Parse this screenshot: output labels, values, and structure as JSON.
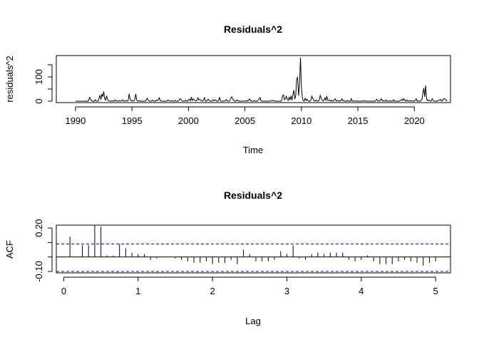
{
  "chart_data": [
    {
      "type": "line",
      "title": "Residuals^2",
      "xlabel": "Time",
      "ylabel": "residuals^2",
      "xlim": [
        1988.3,
        2023.2
      ],
      "ylim": [
        -6,
        188
      ],
      "x_ticks": [
        1990,
        1995,
        2000,
        2005,
        2010,
        2015,
        2020
      ],
      "y_ticks": [
        0,
        50,
        100,
        150
      ],
      "y_tick_labels": [
        "0",
        "",
        "100",
        ""
      ],
      "grid": false,
      "series": [
        {
          "x_start": 1990.0,
          "x_step": 0.083333,
          "values": [
            0,
            0,
            0,
            0,
            0,
            0,
            0,
            0,
            0,
            0,
            0,
            0,
            0,
            0,
            3,
            16,
            8,
            2,
            0,
            0,
            0,
            5,
            1,
            0,
            0,
            12,
            25,
            6,
            30,
            18,
            40,
            10,
            4,
            22,
            8,
            2,
            1,
            0,
            0,
            2,
            0,
            0,
            5,
            2,
            0,
            0,
            2,
            1,
            0,
            2,
            6,
            0,
            0,
            3,
            1,
            0,
            5,
            30,
            8,
            2,
            3,
            0,
            2,
            6,
            30,
            5,
            0,
            1,
            2,
            0,
            0,
            0,
            0,
            0,
            0,
            3,
            12,
            6,
            2,
            0,
            0,
            1,
            4,
            0,
            0,
            0,
            4,
            2,
            6,
            14,
            2,
            0,
            1,
            0,
            0,
            0,
            0,
            0,
            5,
            3,
            1,
            0,
            0,
            2,
            0,
            0,
            3,
            0,
            0,
            0,
            3,
            10,
            8,
            2,
            0,
            0,
            1,
            4,
            0,
            0,
            5,
            8,
            2,
            15,
            3,
            10,
            6,
            2,
            0,
            3,
            14,
            5,
            8,
            3,
            2,
            0,
            5,
            14,
            0,
            0,
            2,
            8,
            3,
            0,
            0,
            0,
            6,
            2,
            5,
            4,
            0,
            0,
            3,
            15,
            2,
            0,
            0,
            0,
            0,
            1,
            6,
            2,
            0,
            0,
            2,
            12,
            18,
            8,
            4,
            0,
            0,
            2,
            5,
            1,
            0,
            0,
            0,
            0,
            1,
            0,
            0,
            0,
            3,
            0,
            4,
            9,
            2,
            0,
            0,
            0,
            2,
            0,
            0,
            0,
            4,
            7,
            15,
            2,
            1,
            0,
            0,
            0,
            0,
            0,
            0,
            0,
            0,
            0,
            2,
            2,
            3,
            0,
            1,
            0,
            0,
            0,
            0,
            0,
            0,
            2,
            22,
            26,
            6,
            10,
            20,
            8,
            3,
            16,
            6,
            22,
            4,
            28,
            45,
            8,
            25,
            92,
            98,
            22,
            70,
            180,
            60,
            15,
            2,
            0,
            12,
            3,
            8,
            2,
            0,
            0,
            3,
            20,
            12,
            4,
            0,
            3,
            4,
            0,
            0,
            6,
            24,
            12,
            5,
            0,
            3,
            14,
            4,
            20,
            3,
            3,
            5,
            0,
            3,
            0,
            0,
            6,
            10,
            0,
            2,
            0,
            2,
            0,
            1,
            10,
            2,
            2,
            0,
            0,
            0,
            3,
            0,
            0,
            0,
            10,
            0,
            1,
            0,
            0,
            2,
            0,
            0,
            0,
            0,
            0,
            0,
            0,
            1,
            3,
            0,
            0,
            0,
            0,
            0,
            0,
            0,
            0,
            0,
            0,
            0,
            2,
            8,
            2,
            0,
            0,
            5,
            10,
            0,
            2,
            0,
            0,
            5,
            0,
            0,
            0,
            2,
            0,
            0,
            0,
            6,
            0,
            0,
            0,
            0,
            0,
            0,
            3,
            3,
            8,
            3,
            10,
            2,
            0,
            5,
            0,
            0,
            3,
            0,
            0,
            2,
            0,
            0,
            3,
            10,
            0,
            2,
            0,
            0,
            3,
            5,
            30,
            54,
            18,
            65,
            10,
            2,
            5,
            3,
            0,
            2,
            10,
            3,
            0,
            0,
            0,
            0,
            2,
            4,
            5,
            7,
            0,
            3,
            10,
            10,
            8,
            3,
            1
          ]
        }
      ]
    },
    {
      "type": "bar",
      "title": "Residuals^2",
      "xlabel": "Lag",
      "ylabel": "ACF",
      "xlim": [
        -0.1,
        5.2
      ],
      "ylim": [
        -0.11,
        0.22
      ],
      "x_ticks": [
        0,
        1,
        2,
        3,
        4,
        5
      ],
      "y_ticks": [
        -0.1,
        0.0,
        0.1,
        0.2
      ],
      "y_tick_labels": [
        "-0.10",
        "",
        "",
        "0.20"
      ],
      "lag_step": 0.083333,
      "values": [
        0.14,
        0.0,
        0.08,
        0.08,
        0.22,
        0.21,
        0.01,
        0.01,
        0.09,
        0.06,
        0.03,
        0.02,
        0.02,
        -0.02,
        -0.01,
        0.0,
        0.0,
        -0.01,
        -0.02,
        -0.03,
        -0.04,
        -0.04,
        -0.03,
        -0.05,
        -0.04,
        -0.04,
        -0.02,
        -0.05,
        0.05,
        0.02,
        -0.03,
        -0.03,
        -0.03,
        -0.02,
        0.04,
        0.02,
        0.08,
        -0.01,
        -0.02,
        0.02,
        0.03,
        0.02,
        0.03,
        0.03,
        0.03,
        -0.02,
        -0.03,
        -0.02,
        0.01,
        -0.03,
        -0.05,
        -0.05,
        -0.05,
        -0.03,
        -0.02,
        -0.03,
        -0.04,
        -0.06,
        -0.04,
        -0.03
      ],
      "ci_upper": 0.09,
      "ci_lower": -0.1,
      "ci_color": "#0000cc",
      "grid": false
    }
  ]
}
